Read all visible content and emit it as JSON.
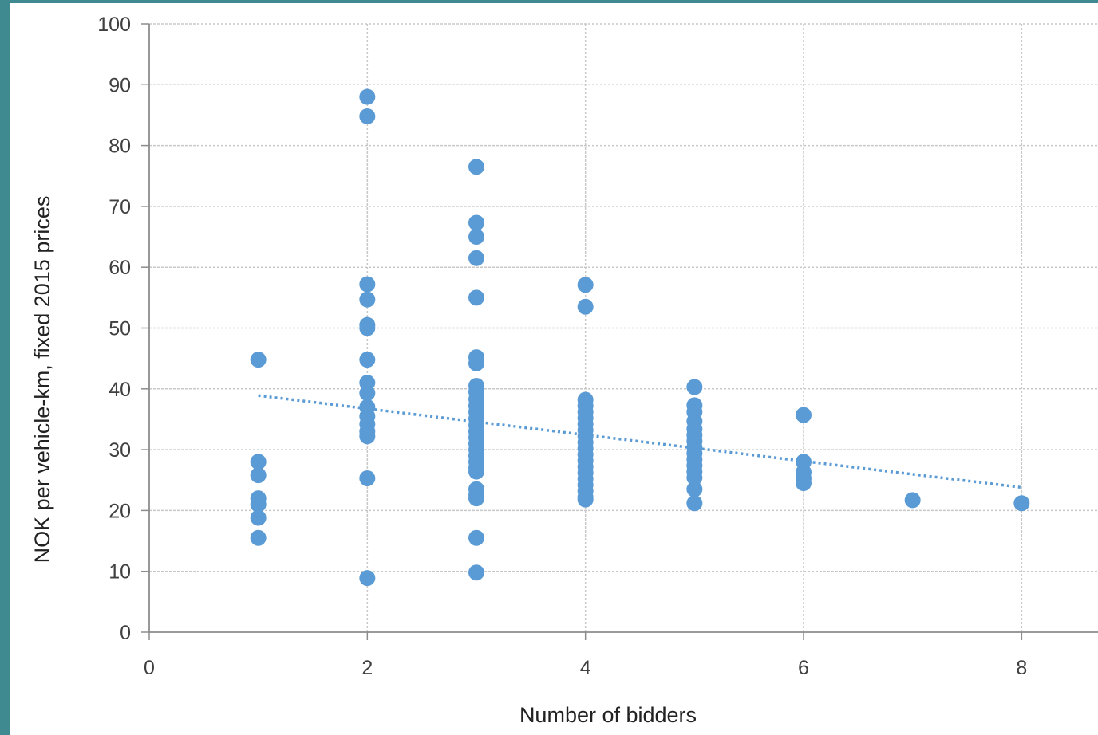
{
  "chart_data": {
    "type": "scatter",
    "title": "",
    "xlabel": "Number  of bidders",
    "ylabel": "NOK per vehicle-km, fixed 2015 prices",
    "xlim": [
      0,
      8.7
    ],
    "ylim": [
      0,
      100
    ],
    "x_ticks": [
      "0",
      "2",
      "4",
      "6",
      "8"
    ],
    "y_ticks": [
      "0",
      "10",
      "20",
      "30",
      "40",
      "50",
      "60",
      "70",
      "80",
      "90",
      "100"
    ],
    "grid": true,
    "marker_color": "#5b9bd5",
    "trendline": {
      "style": "dotted",
      "color": "#5b9bd5",
      "x": [
        1,
        8
      ],
      "y": [
        38.9,
        23.8
      ]
    },
    "series": [
      {
        "points": [
          [
            1,
            44.8
          ],
          [
            1,
            28
          ],
          [
            1,
            25.8
          ],
          [
            1,
            22
          ],
          [
            1,
            21
          ],
          [
            1,
            18.8
          ],
          [
            1,
            15.5
          ],
          [
            2,
            88
          ],
          [
            2,
            84.8
          ],
          [
            2,
            57.2
          ],
          [
            2,
            54.7
          ],
          [
            2,
            50.5
          ],
          [
            2,
            50
          ],
          [
            2,
            44.8
          ],
          [
            2,
            41
          ],
          [
            2,
            39.3
          ],
          [
            2,
            37
          ],
          [
            2,
            35.5
          ],
          [
            2,
            34.2
          ],
          [
            2,
            33
          ],
          [
            2,
            32.2
          ],
          [
            2,
            25.3
          ],
          [
            2,
            8.9
          ],
          [
            3,
            76.5
          ],
          [
            3,
            67.3
          ],
          [
            3,
            65
          ],
          [
            3,
            61.5
          ],
          [
            3,
            55
          ],
          [
            3,
            45.2
          ],
          [
            3,
            44.2
          ],
          [
            3,
            40.5
          ],
          [
            3,
            39.5
          ],
          [
            3,
            38.3
          ],
          [
            3,
            37.2
          ],
          [
            3,
            36.2
          ],
          [
            3,
            35.1
          ],
          [
            3,
            34
          ],
          [
            3,
            33
          ],
          [
            3,
            32
          ],
          [
            3,
            31
          ],
          [
            3,
            30
          ],
          [
            3,
            29
          ],
          [
            3,
            28
          ],
          [
            3,
            27
          ],
          [
            3,
            26.4
          ],
          [
            3,
            23.5
          ],
          [
            3,
            22.6
          ],
          [
            3,
            22
          ],
          [
            3,
            15.5
          ],
          [
            3,
            9.8
          ],
          [
            4,
            57.1
          ],
          [
            4,
            53.5
          ],
          [
            4,
            38.2
          ],
          [
            4,
            37.2
          ],
          [
            4,
            36.2
          ],
          [
            4,
            35.2
          ],
          [
            4,
            34.2
          ],
          [
            4,
            33.2
          ],
          [
            4,
            32.2
          ],
          [
            4,
            31.2
          ],
          [
            4,
            30.2
          ],
          [
            4,
            29.2
          ],
          [
            4,
            28.2
          ],
          [
            4,
            27.2
          ],
          [
            4,
            26.2
          ],
          [
            4,
            25.2
          ],
          [
            4,
            24.2
          ],
          [
            4,
            23.2
          ],
          [
            4,
            22.2
          ],
          [
            4,
            21.8
          ],
          [
            5,
            40.3
          ],
          [
            5,
            37.3
          ],
          [
            5,
            36.2
          ],
          [
            5,
            34.7
          ],
          [
            5,
            33.4
          ],
          [
            5,
            32.4
          ],
          [
            5,
            31.4
          ],
          [
            5,
            30.4
          ],
          [
            5,
            29.4
          ],
          [
            5,
            28.4
          ],
          [
            5,
            27.4
          ],
          [
            5,
            26.4
          ],
          [
            5,
            25.4
          ],
          [
            5,
            23.5
          ],
          [
            5,
            21.2
          ],
          [
            6,
            35.7
          ],
          [
            6,
            28
          ],
          [
            6,
            26.3
          ],
          [
            6,
            25.3
          ],
          [
            6,
            24.5
          ],
          [
            7,
            21.7
          ],
          [
            8,
            21.2
          ]
        ]
      }
    ]
  }
}
